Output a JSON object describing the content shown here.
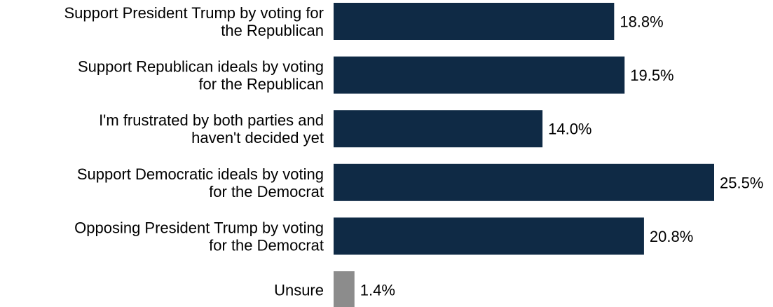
{
  "chart_data": {
    "type": "bar",
    "orientation": "horizontal",
    "categories": [
      [
        "Support President Trump by voting for",
        "the Republican"
      ],
      [
        "Support Republican ideals by voting",
        "for the Republican"
      ],
      [
        "I'm frustrated by both parties and",
        "haven't decided yet"
      ],
      [
        "Support Democratic ideals by voting",
        "for the Democrat"
      ],
      [
        "Opposing President Trump by voting",
        "for the Democrat"
      ],
      [
        "Unsure"
      ]
    ],
    "values": [
      18.8,
      19.5,
      14.0,
      25.5,
      20.8,
      1.4
    ],
    "value_labels": [
      "18.8%",
      "19.5%",
      "14.0%",
      "25.5%",
      "20.8%",
      "1.4%"
    ],
    "colors": [
      "#0f2a45",
      "#0f2a45",
      "#0f2a45",
      "#0f2a45",
      "#0f2a45",
      "#8c8c8c"
    ],
    "xlim": [
      0,
      25.5
    ],
    "grid": false,
    "legend": false
  }
}
